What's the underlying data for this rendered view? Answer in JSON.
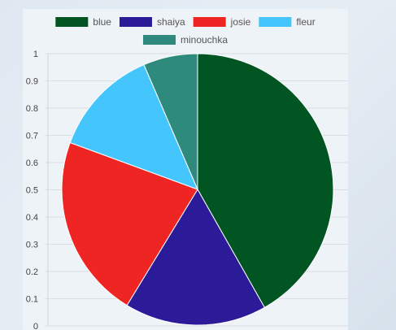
{
  "chart_data": {
    "type": "pie",
    "title": "",
    "series": [
      {
        "name": "blue",
        "value": 42,
        "color": "#005522"
      },
      {
        "name": "shaiya",
        "value": 17,
        "color": "#2c1b99"
      },
      {
        "name": "josie",
        "value": 22,
        "color": "#ee2522"
      },
      {
        "name": "fleur",
        "value": 13,
        "color": "#44c6fc"
      },
      {
        "name": "minouchka",
        "value": 6.5,
        "color": "#2e8a7c"
      }
    ],
    "y_ticks": [
      "0",
      "0.1",
      "0.2",
      "0.3",
      "0.4",
      "0.5",
      "0.6",
      "0.7",
      "0.8",
      "0.9",
      "1"
    ],
    "ylim": [
      0,
      1
    ],
    "grid": true,
    "legend_position": "top"
  }
}
